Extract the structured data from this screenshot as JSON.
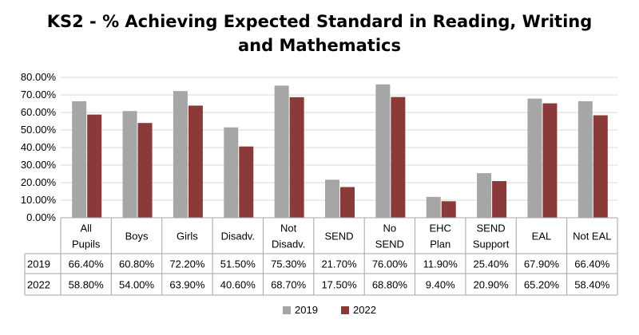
{
  "chart_data": {
    "type": "bar",
    "title_line1": "KS2 - % Achieving Expected Standard in Reading, Writing",
    "title_line2": "and Mathematics",
    "categories": [
      [
        "All",
        "Pupils"
      ],
      [
        "Boys"
      ],
      [
        "Girls"
      ],
      [
        "Disadv."
      ],
      [
        "Not",
        "Disadv."
      ],
      [
        "SEND"
      ],
      [
        "No",
        "SEND"
      ],
      [
        "EHC",
        "Plan"
      ],
      [
        "SEND",
        "Support"
      ],
      [
        "EAL"
      ],
      [
        "Not EAL"
      ]
    ],
    "series": [
      {
        "name": "2019",
        "color": "#a6a6a6",
        "values": [
          66.4,
          60.8,
          72.2,
          51.5,
          75.3,
          21.7,
          76.0,
          11.9,
          25.4,
          67.9,
          66.4
        ],
        "labels": [
          "66.40%",
          "60.80%",
          "72.20%",
          "51.50%",
          "75.30%",
          "21.70%",
          "76.00%",
          "11.90%",
          "25.40%",
          "67.90%",
          "66.40%"
        ]
      },
      {
        "name": "2022",
        "color": "#8b3a3a",
        "values": [
          58.8,
          54.0,
          63.9,
          40.6,
          68.7,
          17.5,
          68.8,
          9.4,
          20.9,
          65.2,
          58.4
        ],
        "labels": [
          "58.80%",
          "54.00%",
          "63.90%",
          "40.60%",
          "68.70%",
          "17.50%",
          "68.80%",
          "9.40%",
          "20.90%",
          "65.20%",
          "58.40%"
        ]
      }
    ],
    "ylim": [
      0,
      80
    ],
    "yticks": [
      "0.00%",
      "10.00%",
      "20.00%",
      "30.00%",
      "40.00%",
      "50.00%",
      "60.00%",
      "70.00%",
      "80.00%"
    ],
    "grid": true,
    "legend_position": "bottom",
    "data_table": true
  }
}
